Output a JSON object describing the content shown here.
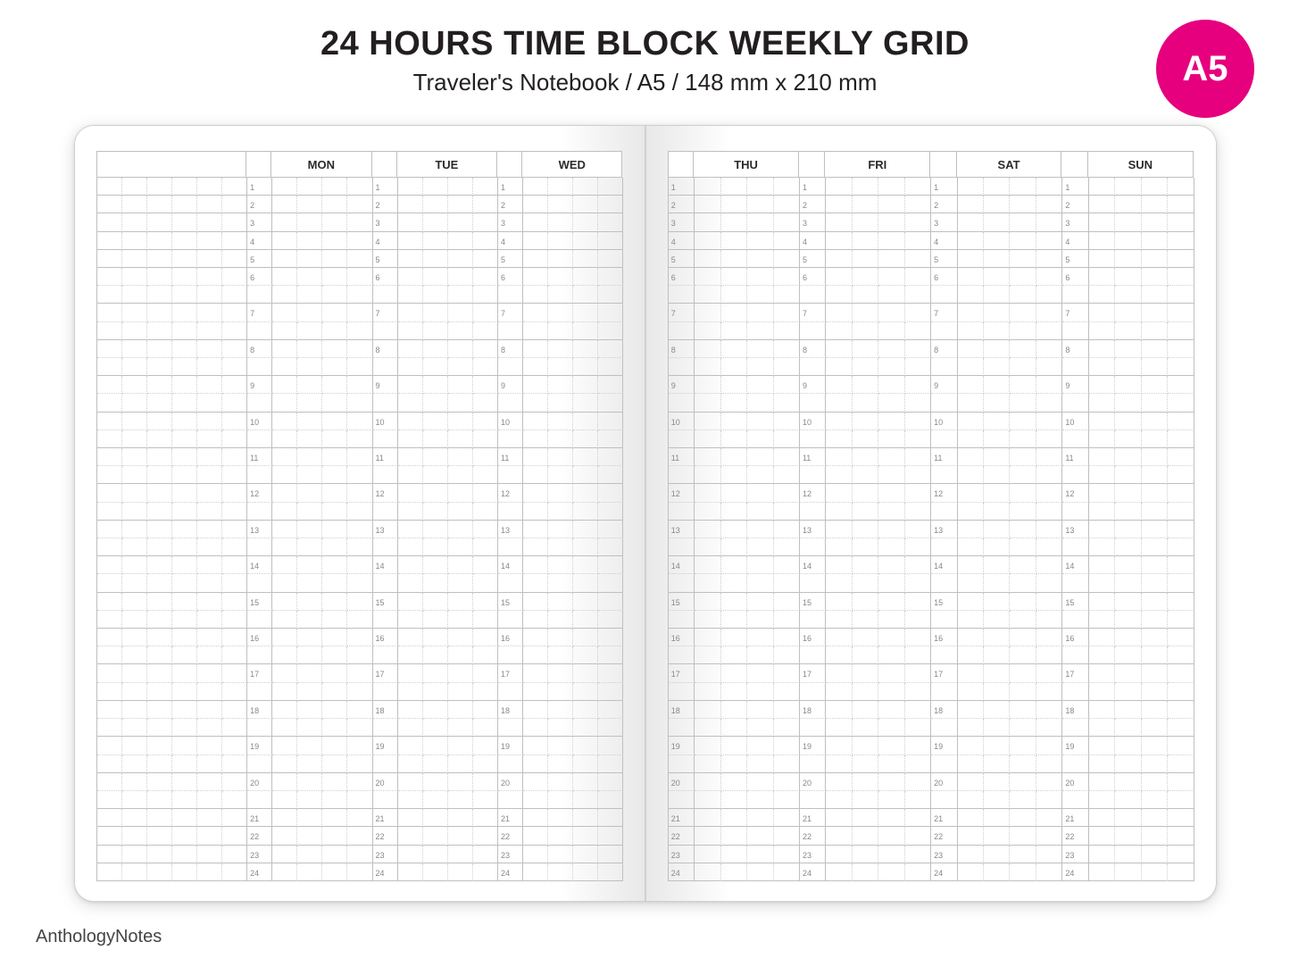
{
  "header": {
    "title": "24 HOURS TIME BLOCK WEEKLY GRID",
    "subtitle": "Traveler's Notebook / A5 /  148 mm x 210 mm",
    "badge": "A5"
  },
  "colors": {
    "badge_bg": "#e6007e",
    "badge_fg": "#ffffff",
    "text": "#231f20",
    "grid_solid": "#bfbfbf",
    "grid_dotted": "#cfcfcf",
    "hour_label": "#888888",
    "page_shadow": "#e8e8e8"
  },
  "planner": {
    "left_page": {
      "has_notes_column": true,
      "days": [
        "MON",
        "TUE",
        "WED"
      ]
    },
    "right_page": {
      "has_notes_column": false,
      "days": [
        "THU",
        "FRI",
        "SAT",
        "SUN"
      ]
    },
    "hours": [
      1,
      2,
      3,
      4,
      5,
      6,
      7,
      8,
      9,
      10,
      11,
      12,
      13,
      14,
      15,
      16,
      17,
      18,
      19,
      20,
      21,
      22,
      23,
      24
    ],
    "dense_hours": [
      1,
      2,
      3,
      4,
      5,
      21,
      22,
      23,
      24
    ],
    "notes_subcols": 6,
    "day_hour_col": 1,
    "day_body_subcols": 4
  },
  "footer": {
    "brand": "AnthologyNotes"
  }
}
